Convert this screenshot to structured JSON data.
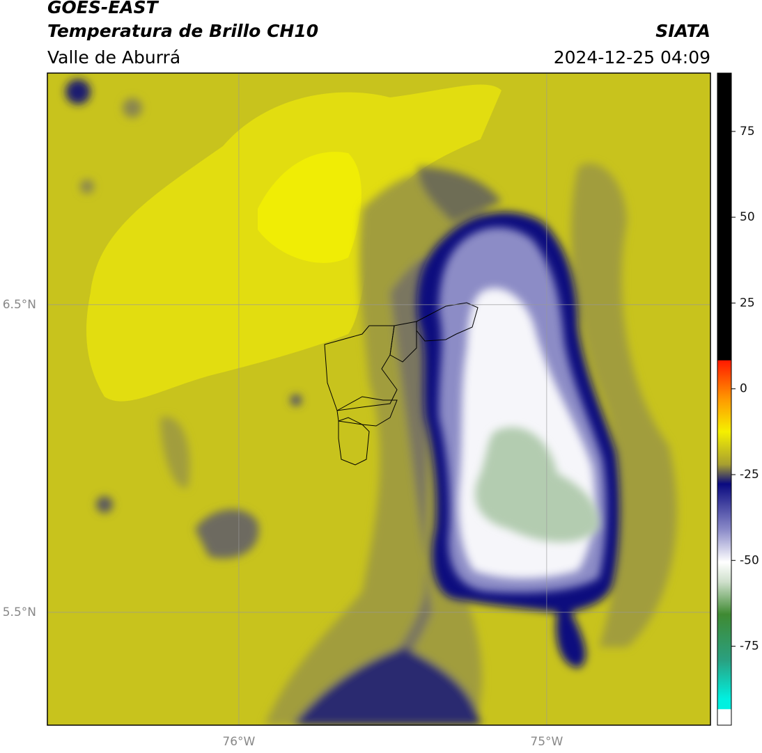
{
  "header": {
    "title": "GOES-EAST",
    "subtitle": "Temperatura de Brillo CH10",
    "region": "Valle de Aburrá",
    "source": "SIATA",
    "datetime": "2024-12-25 04:09"
  },
  "map": {
    "xlim": [
      -76.622,
      -74.468
    ],
    "ylim": [
      5.133,
      7.253
    ],
    "xticks": [
      {
        "value": -76,
        "label": "76°W"
      },
      {
        "value": -75,
        "label": "75°W"
      }
    ],
    "yticks": [
      {
        "value": 6.5,
        "label": "6.5°N"
      },
      {
        "value": 5.5,
        "label": "5.5°N"
      }
    ]
  },
  "colorbar": {
    "lim": [
      -98,
      92
    ],
    "ticks": [
      75,
      50,
      25,
      0,
      -25,
      -50,
      -75
    ]
  }
}
